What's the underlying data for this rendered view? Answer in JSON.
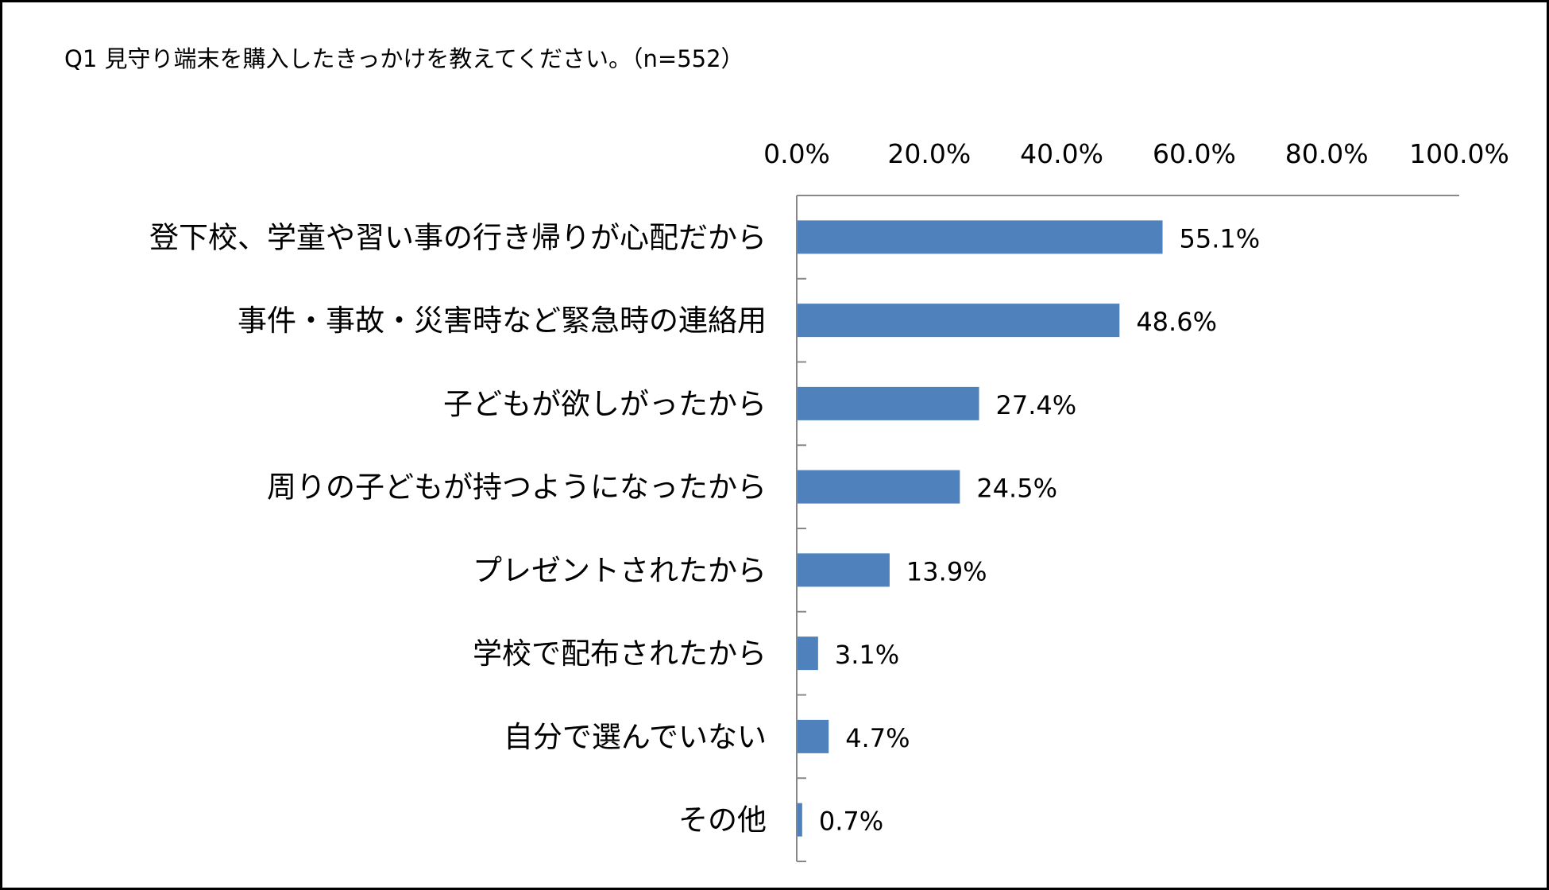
{
  "title": "Q1 見守り端末を購入したきっかけを教えてください。（n=552）",
  "chart_data": {
    "type": "bar",
    "orientation": "horizontal",
    "title": "Q1 見守り端末を購入したきっかけを教えてください。（n=552）",
    "categories": [
      "登下校、学童や習い事の行き帰りが心配だから",
      "事件・事故・災害時など緊急時の連絡用",
      "子どもが欲しがったから",
      "周りの子どもが持つようになったから",
      "プレゼントされたから",
      "学校で配布されたから",
      "自分で選んでいない",
      "その他"
    ],
    "values": [
      55.1,
      48.6,
      27.4,
      24.5,
      13.9,
      3.1,
      4.7,
      0.7
    ],
    "value_labels": [
      "55.1%",
      "48.6%",
      "27.4%",
      "24.5%",
      "13.9%",
      "3.1%",
      "4.7%",
      "0.7%"
    ],
    "xlim": [
      0,
      100
    ],
    "xticks": [
      0,
      20,
      40,
      60,
      80,
      100
    ],
    "xtick_labels": [
      "0.0%",
      "20.0%",
      "40.0%",
      "60.0%",
      "80.0%",
      "100.0%"
    ],
    "x_axis_position": "top",
    "xlabel": "",
    "ylabel": "",
    "grid": false,
    "legend": "none",
    "bar_color": "#4F81BD"
  }
}
